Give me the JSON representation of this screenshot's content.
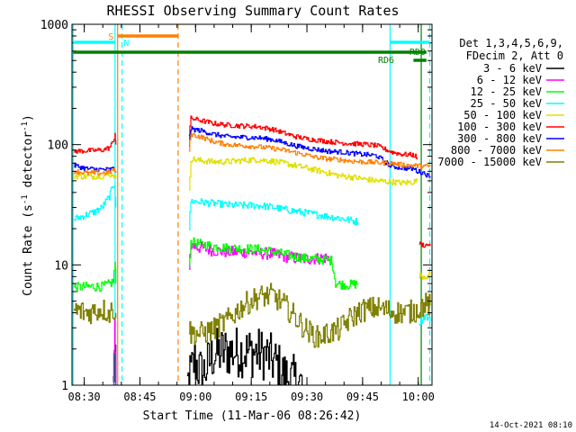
{
  "chart_data": {
    "type": "line",
    "title": "RHESSI Observing Summary Count Rates",
    "xlabel": "Start Time (11-Mar-06 08:26:42)",
    "ylabel": "Count Rate (s",
    "ylabel_sup": "-1",
    "ylabel_tail": " detector",
    "ylabel_end": ")",
    "yscale": "log",
    "ylim": [
      1,
      1000
    ],
    "xlim_minutes": [
      0,
      97
    ],
    "x_tick_labels": [
      "08:30",
      "08:45",
      "09:00",
      "09:15",
      "09:30",
      "09:45",
      "10:00"
    ],
    "y_tick_labels": [
      "1",
      "10",
      "100",
      "1000"
    ],
    "legend_header": [
      "Det 1,3,4,5,6,9,",
      "FDecim 2, Att 0"
    ],
    "timestamp": "14-Oct-2021 08:10",
    "annotations": {
      "S": {
        "label": "S",
        "color": "#ff8000"
      },
      "N": {
        "label": "N",
        "color": "#00ffff"
      },
      "RD0": {
        "label": "RD0",
        "color": "#008000"
      },
      "RD6": {
        "label": "RD6",
        "color": "#008000"
      }
    },
    "series": [
      {
        "name": "3 - 6 keV",
        "color": "#000000",
        "segments": [
          [
            [
              11.0,
              1.0
            ],
            [
              11.4,
              1.7
            ],
            [
              11.8,
              1.0
            ]
          ],
          [
            [
              31,
              1.0
            ],
            [
              33,
              1.6
            ],
            [
              35,
              1.2
            ],
            [
              38,
              1.8
            ],
            [
              41,
              1.9
            ],
            [
              44,
              1.9
            ],
            [
              48,
              1.9
            ],
            [
              52,
              1.8
            ],
            [
              55,
              1.5
            ],
            [
              57,
              1.2
            ],
            [
              62,
              1.0
            ]
          ]
        ]
      },
      {
        "name": "6 - 12 keV",
        "color": "#ff00ff",
        "segments": [
          [
            [
              11.0,
              1.0
            ],
            [
              11.5,
              3.2
            ],
            [
              11.8,
              1.0
            ]
          ],
          [
            [
              31.5,
              10.0
            ],
            [
              32,
              14.5
            ],
            [
              34,
              14.0
            ],
            [
              38,
              13.2
            ],
            [
              42,
              12.8
            ],
            [
              46,
              12.8
            ],
            [
              50,
              12.6
            ],
            [
              54,
              12.3
            ],
            [
              57,
              11.8
            ],
            [
              60,
              11.4
            ],
            [
              63,
              11.2
            ],
            [
              66,
              11.3
            ],
            [
              68,
              11.5
            ],
            [
              70,
              11.2
            ]
          ],
          [
            [
              70.2,
              1.0
            ]
          ]
        ]
      },
      {
        "name": "12 - 25 keV",
        "color": "#00ff00",
        "segments": [
          [
            [
              0.5,
              6.5
            ],
            [
              4,
              6.6
            ],
            [
              8,
              6.6
            ],
            [
              10,
              6.9
            ],
            [
              11.0,
              7.3
            ],
            [
              11.6,
              10.5
            ],
            [
              11.8,
              7.0
            ]
          ],
          [
            [
              31.5,
              10.0
            ],
            [
              32,
              15.5
            ],
            [
              34,
              15.0
            ],
            [
              38,
              14.3
            ],
            [
              42,
              13.8
            ],
            [
              46,
              13.7
            ],
            [
              50,
              13.5
            ],
            [
              54,
              12.9
            ],
            [
              57,
              12.3
            ],
            [
              60,
              11.8
            ],
            [
              63,
              11.3
            ],
            [
              66,
              11.2
            ],
            [
              68,
              11.0
            ],
            [
              70,
              10.9
            ],
            [
              71,
              7.0
            ],
            [
              74,
              6.8
            ],
            [
              76,
              6.9
            ],
            [
              77,
              7.0
            ]
          ],
          [
            [
              77.5,
              1.0
            ]
          ]
        ]
      },
      {
        "name": "25 - 50 keV",
        "color": "#00ffff",
        "segments": [
          [
            [
              0.5,
              24
            ],
            [
              3,
              25.5
            ],
            [
              6,
              27.5
            ],
            [
              8,
              30
            ],
            [
              10,
              37
            ],
            [
              11.0,
              45
            ],
            [
              11.5,
              48
            ],
            [
              11.8,
              30
            ]
          ],
          [
            [
              31.5,
              20
            ],
            [
              32,
              34
            ],
            [
              34,
              33.5
            ],
            [
              38,
              32.5
            ],
            [
              42,
              31.5
            ],
            [
              46,
              31.2
            ],
            [
              50,
              31.2
            ],
            [
              54,
              30.2
            ],
            [
              57,
              29.0
            ],
            [
              60,
              28.0
            ],
            [
              63,
              27.0
            ],
            [
              66,
              26.2
            ],
            [
              69,
              25.2
            ],
            [
              72,
              24.5
            ],
            [
              75,
              23.5
            ],
            [
              77,
              22.8
            ]
          ],
          [
            [
              93.5,
              3.3
            ],
            [
              95.2,
              3.8
            ],
            [
              96.5,
              3.4
            ]
          ]
        ]
      },
      {
        "name": "50 - 100 keV",
        "color": "#e0e000",
        "segments": [
          [
            [
              0.5,
              55
            ],
            [
              4,
              54
            ],
            [
              8,
              55
            ],
            [
              11.0,
              57
            ],
            [
              11.8,
              52
            ]
          ],
          [
            [
              31.5,
              40
            ],
            [
              32,
              76
            ],
            [
              34,
              74
            ],
            [
              38,
              72
            ],
            [
              42,
              72
            ],
            [
              46,
              74
            ],
            [
              50,
              75
            ],
            [
              54,
              73
            ],
            [
              57,
              70
            ],
            [
              60,
              67
            ],
            [
              63,
              64
            ],
            [
              66,
              61
            ],
            [
              69,
              58
            ],
            [
              72,
              55
            ],
            [
              75,
              54
            ],
            [
              78,
              52
            ],
            [
              82,
              50
            ],
            [
              86,
              49
            ],
            [
              89,
              48
            ],
            [
              92,
              49
            ],
            [
              93,
              50
            ]
          ],
          [
            [
              93.5,
              8.2
            ],
            [
              95.2,
              8.0
            ],
            [
              96.5,
              8.3
            ]
          ]
        ]
      },
      {
        "name": "100 - 300 keV",
        "color": "#ff0000",
        "segments": [
          [
            [
              0.5,
              88
            ],
            [
              4,
              89
            ],
            [
              8,
              90
            ],
            [
              10,
              94
            ],
            [
              11.0,
              105
            ],
            [
              11.6,
              125
            ],
            [
              11.8,
              100
            ]
          ],
          [
            [
              31.5,
              120
            ],
            [
              32,
              165
            ],
            [
              35,
              158
            ],
            [
              38,
              150
            ],
            [
              42,
              145
            ],
            [
              46,
              143
            ],
            [
              50,
              141
            ],
            [
              54,
              134
            ],
            [
              57,
              125
            ],
            [
              60,
              117
            ],
            [
              63,
              112
            ],
            [
              66,
              109
            ],
            [
              69,
              106
            ],
            [
              72,
              104
            ],
            [
              75,
              102
            ],
            [
              78,
              101
            ],
            [
              82,
              98
            ],
            [
              86,
              87
            ],
            [
              89,
              83
            ],
            [
              92,
              82
            ],
            [
              93,
              78
            ]
          ],
          [
            [
              93.5,
              15
            ],
            [
              95.2,
              14.5
            ],
            [
              96.5,
              15
            ]
          ]
        ]
      },
      {
        "name": "300 - 800 keV",
        "color": "#0000ff",
        "segments": [
          [
            [
              0.5,
              67
            ],
            [
              4,
              63
            ],
            [
              8,
              62
            ],
            [
              10,
              62
            ],
            [
              11.0,
              63
            ],
            [
              11.8,
              60
            ]
          ],
          [
            [
              31.5,
              100
            ],
            [
              32,
              135
            ],
            [
              35,
              130
            ],
            [
              38,
              122
            ],
            [
              42,
              116
            ],
            [
              46,
              115
            ],
            [
              50,
              114
            ],
            [
              54,
              110
            ],
            [
              57,
              104
            ],
            [
              60,
              98
            ],
            [
              63,
              94
            ],
            [
              66,
              91
            ],
            [
              69,
              88
            ],
            [
              72,
              87
            ],
            [
              75,
              85
            ],
            [
              78,
              83
            ],
            [
              82,
              81
            ],
            [
              86,
              66
            ],
            [
              89,
              64
            ],
            [
              92,
              63
            ],
            [
              93,
              60
            ],
            [
              95,
              58
            ],
            [
              96.5,
              53
            ]
          ]
        ]
      },
      {
        "name": "800 - 7000 keV",
        "color": "#ff8000",
        "segments": [
          [
            [
              0.5,
              60
            ],
            [
              4,
              58
            ],
            [
              8,
              58
            ],
            [
              10,
              59
            ],
            [
              11.0,
              62
            ],
            [
              11.8,
              58
            ]
          ],
          [
            [
              31.5,
              90
            ],
            [
              32,
              122
            ],
            [
              35,
              115
            ],
            [
              38,
              106
            ],
            [
              42,
              100
            ],
            [
              46,
              98
            ],
            [
              50,
              96
            ],
            [
              54,
              93
            ],
            [
              57,
              90
            ],
            [
              60,
              86
            ],
            [
              63,
              82
            ],
            [
              66,
              78
            ],
            [
              69,
              76
            ],
            [
              72,
              75
            ],
            [
              75,
              73
            ],
            [
              78,
              72
            ],
            [
              82,
              71
            ],
            [
              86,
              70
            ],
            [
              89,
              68
            ],
            [
              92,
              67
            ],
            [
              95,
              66
            ],
            [
              96.5,
              66
            ]
          ]
        ]
      },
      {
        "name": "7000 - 15000 keV",
        "color": "#808000",
        "segments": [
          [
            [
              0.5,
              4.2
            ],
            [
              4,
              4.0
            ],
            [
              8,
              4.3
            ],
            [
              10,
              4.0
            ],
            [
              11.0,
              4.3
            ],
            [
              11.8,
              4.0
            ]
          ],
          [
            [
              31.5,
              3.0
            ],
            [
              32,
              2.7
            ],
            [
              35,
              2.7
            ],
            [
              38,
              2.9
            ],
            [
              42,
              3.5
            ],
            [
              46,
              4.6
            ],
            [
              50,
              5.4
            ],
            [
              54,
              5.6
            ],
            [
              57,
              4.7
            ],
            [
              60,
              3.7
            ],
            [
              63,
              2.9
            ],
            [
              66,
              2.5
            ],
            [
              69,
              2.7
            ],
            [
              72,
              2.9
            ],
            [
              75,
              3.6
            ],
            [
              78,
              4.2
            ],
            [
              82,
              4.4
            ],
            [
              86,
              4.1
            ],
            [
              89,
              4.0
            ],
            [
              92,
              4.1
            ],
            [
              95,
              4.7
            ],
            [
              96.5,
              4.6
            ]
          ]
        ]
      }
    ]
  }
}
